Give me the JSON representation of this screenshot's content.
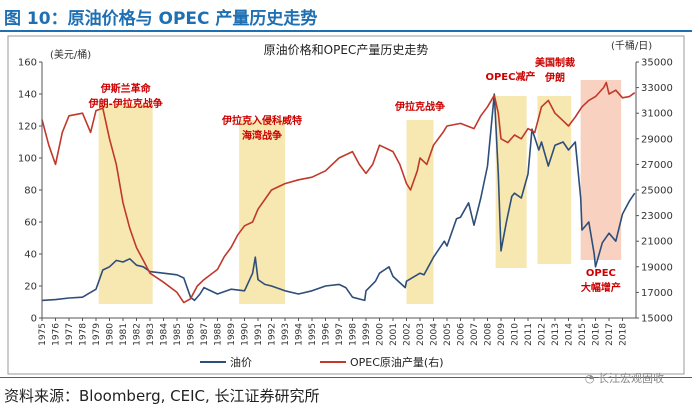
{
  "figure_title": "图 10：原油价格与 OPEC 产量历史走势",
  "source_note": "资料来源：Bloomberg, CEIC, 长江证券研究所",
  "watermark": "长江宏观固收",
  "colors": {
    "oil": "#2e4e7a",
    "opec": "#c0392b",
    "band": "#f6e3a2",
    "band_2015": "#f7c9b6",
    "accent": "#1f6fb3",
    "annotation": "#cc0000"
  },
  "chart_data": {
    "type": "line",
    "title": "原油价格和OPEC产量历史走势",
    "y_left_unit": "(美元/桶)",
    "y_right_unit": "(千桶/日)",
    "ylim_left": [
      0,
      160
    ],
    "ylim_right": [
      15000,
      35000
    ],
    "yticks_left": [
      0,
      20,
      40,
      60,
      80,
      100,
      120,
      140,
      160
    ],
    "yticks_right": [
      15000,
      17000,
      19000,
      21000,
      23000,
      25000,
      27000,
      29000,
      31000,
      33000,
      35000
    ],
    "xlim": [
      1975,
      2019
    ],
    "xticks": [
      "1975",
      "1976",
      "1977",
      "1978",
      "1979",
      "1980",
      "1981",
      "1982",
      "1983",
      "1984",
      "1985",
      "1986",
      "1987",
      "1988",
      "1989",
      "1990",
      "1991",
      "1992",
      "1993",
      "1994",
      "1995",
      "1996",
      "1997",
      "1998",
      "1999",
      "2000",
      "2001",
      "2002",
      "2003",
      "2004",
      "2005",
      "2006",
      "2007",
      "2008",
      "2009",
      "2010",
      "2011",
      "2012",
      "2013",
      "2014",
      "2015",
      "2016",
      "2017",
      "2018"
    ],
    "legend": [
      "油价",
      "OPEC原油产量(右)"
    ],
    "legend_position": "bottom",
    "series": [
      {
        "name": "油价",
        "axis": "left",
        "points": [
          [
            1975,
            11
          ],
          [
            1976,
            11.5
          ],
          [
            1977,
            12.5
          ],
          [
            1978,
            13
          ],
          [
            1979,
            18
          ],
          [
            1979.5,
            30
          ],
          [
            1980,
            32
          ],
          [
            1980.5,
            36
          ],
          [
            1981,
            35
          ],
          [
            1981.5,
            37
          ],
          [
            1982,
            33
          ],
          [
            1982.5,
            32
          ],
          [
            1983,
            29
          ],
          [
            1984,
            28
          ],
          [
            1985,
            27
          ],
          [
            1985.5,
            25
          ],
          [
            1986,
            13
          ],
          [
            1986.3,
            11
          ],
          [
            1986.7,
            15
          ],
          [
            1987,
            19
          ],
          [
            1988,
            15
          ],
          [
            1989,
            18
          ],
          [
            1990,
            17
          ],
          [
            1990.6,
            28
          ],
          [
            1990.8,
            38
          ],
          [
            1991,
            24
          ],
          [
            1991.5,
            21
          ],
          [
            1992,
            20
          ],
          [
            1993,
            17
          ],
          [
            1994,
            15
          ],
          [
            1995,
            17
          ],
          [
            1996,
            20
          ],
          [
            1997,
            21
          ],
          [
            1997.5,
            19
          ],
          [
            1998,
            13
          ],
          [
            1998.9,
            11
          ],
          [
            1999,
            17
          ],
          [
            1999.7,
            23
          ],
          [
            2000,
            28
          ],
          [
            2000.7,
            32
          ],
          [
            2001,
            26
          ],
          [
            2001.9,
            19
          ],
          [
            2002,
            23
          ],
          [
            2003,
            28
          ],
          [
            2003.3,
            27
          ],
          [
            2004,
            38
          ],
          [
            2004.8,
            48
          ],
          [
            2005,
            45
          ],
          [
            2005.7,
            62
          ],
          [
            2006,
            63
          ],
          [
            2006.6,
            72
          ],
          [
            2007,
            58
          ],
          [
            2007.5,
            75
          ],
          [
            2008,
            95
          ],
          [
            2008.5,
            140
          ],
          [
            2008.8,
            90
          ],
          [
            2009,
            42
          ],
          [
            2009.4,
            60
          ],
          [
            2009.8,
            76
          ],
          [
            2010,
            78
          ],
          [
            2010.5,
            75
          ],
          [
            2011,
            90
          ],
          [
            2011.3,
            118
          ],
          [
            2011.8,
            105
          ],
          [
            2012,
            110
          ],
          [
            2012.5,
            95
          ],
          [
            2013,
            108
          ],
          [
            2013.6,
            110
          ],
          [
            2014,
            105
          ],
          [
            2014.5,
            110
          ],
          [
            2014.9,
            75
          ],
          [
            2015,
            55
          ],
          [
            2015.5,
            60
          ],
          [
            2015.9,
            40
          ],
          [
            2016,
            32
          ],
          [
            2016.5,
            47
          ],
          [
            2017,
            53
          ],
          [
            2017.5,
            48
          ],
          [
            2018,
            65
          ],
          [
            2018.5,
            73
          ],
          [
            2018.9,
            78
          ]
        ]
      },
      {
        "name": "OPEC原油产量(右)",
        "axis": "right",
        "points": [
          [
            1975,
            30500
          ],
          [
            1975.5,
            28500
          ],
          [
            1976,
            27000
          ],
          [
            1976.5,
            29500
          ],
          [
            1977,
            30800
          ],
          [
            1978,
            31000
          ],
          [
            1978.6,
            29500
          ],
          [
            1979,
            31200
          ],
          [
            1979.5,
            31400
          ],
          [
            1980,
            29000
          ],
          [
            1980.5,
            27000
          ],
          [
            1981,
            24000
          ],
          [
            1981.5,
            22000
          ],
          [
            1982,
            20500
          ],
          [
            1982.5,
            19500
          ],
          [
            1983,
            18500
          ],
          [
            1984,
            17800
          ],
          [
            1985,
            17000
          ],
          [
            1985.5,
            16200
          ],
          [
            1986,
            16500
          ],
          [
            1986.5,
            17500
          ],
          [
            1987,
            18000
          ],
          [
            1988,
            18800
          ],
          [
            1988.5,
            19800
          ],
          [
            1989,
            20500
          ],
          [
            1989.5,
            21500
          ],
          [
            1990,
            22200
          ],
          [
            1990.6,
            22500
          ],
          [
            1991,
            23500
          ],
          [
            1992,
            25000
          ],
          [
            1993,
            25500
          ],
          [
            1994,
            25800
          ],
          [
            1995,
            26000
          ],
          [
            1996,
            26500
          ],
          [
            1997,
            27500
          ],
          [
            1998,
            28000
          ],
          [
            1998.5,
            27000
          ],
          [
            1999,
            26300
          ],
          [
            1999.5,
            27000
          ],
          [
            2000,
            28500
          ],
          [
            2001,
            28000
          ],
          [
            2001.5,
            27000
          ],
          [
            2002,
            25500
          ],
          [
            2002.3,
            25000
          ],
          [
            2002.8,
            26500
          ],
          [
            2003,
            27500
          ],
          [
            2003.5,
            27000
          ],
          [
            2004,
            28500
          ],
          [
            2004.7,
            29500
          ],
          [
            2005,
            30000
          ],
          [
            2006,
            30200
          ],
          [
            2007,
            29800
          ],
          [
            2007.5,
            30800
          ],
          [
            2008,
            31500
          ],
          [
            2008.5,
            32400
          ],
          [
            2008.8,
            31000
          ],
          [
            2009,
            29000
          ],
          [
            2009.5,
            28700
          ],
          [
            2010,
            29300
          ],
          [
            2010.5,
            29000
          ],
          [
            2011,
            29800
          ],
          [
            2011.5,
            29500
          ],
          [
            2012,
            31500
          ],
          [
            2012.5,
            32000
          ],
          [
            2013,
            31000
          ],
          [
            2013.5,
            30500
          ],
          [
            2014,
            30000
          ],
          [
            2014.5,
            30700
          ],
          [
            2015,
            31500
          ],
          [
            2015.5,
            32000
          ],
          [
            2016,
            32300
          ],
          [
            2016.6,
            33000
          ],
          [
            2016.8,
            33400
          ],
          [
            2017,
            32500
          ],
          [
            2017.5,
            32800
          ],
          [
            2018,
            32200
          ],
          [
            2018.5,
            32300
          ],
          [
            2018.9,
            32600
          ]
        ]
      }
    ],
    "bands": [
      {
        "from": 1979.2,
        "to": 1983.2,
        "color_key": "band"
      },
      {
        "from": 1989.6,
        "to": 1993.0,
        "color_key": "band"
      },
      {
        "from": 2002.0,
        "to": 2004.0,
        "color_key": "band"
      },
      {
        "from": 2008.6,
        "to": 2010.9,
        "color_key": "band"
      },
      {
        "from": 2011.7,
        "to": 2014.2,
        "color_key": "band"
      },
      {
        "from": 2014.9,
        "to": 2017.9,
        "color_key": "band_2015"
      }
    ],
    "annotations": [
      {
        "lines": [
          "伊斯兰革命",
          "伊朗-伊拉克战争"
        ],
        "x": 1981.2
      },
      {
        "lines": [
          "伊拉克入侵科威特",
          "海湾战争"
        ],
        "x": 1991.3
      },
      {
        "lines": [
          "伊拉克战争"
        ],
        "x": 2003.0
      },
      {
        "lines": [
          "OPEC减产"
        ],
        "x": 2009.7
      },
      {
        "lines": [
          "美国制裁",
          "伊朗"
        ],
        "x": 2013.0
      },
      {
        "lines": [
          "OPEC",
          "大幅增产"
        ],
        "x": 2016.4
      }
    ]
  }
}
